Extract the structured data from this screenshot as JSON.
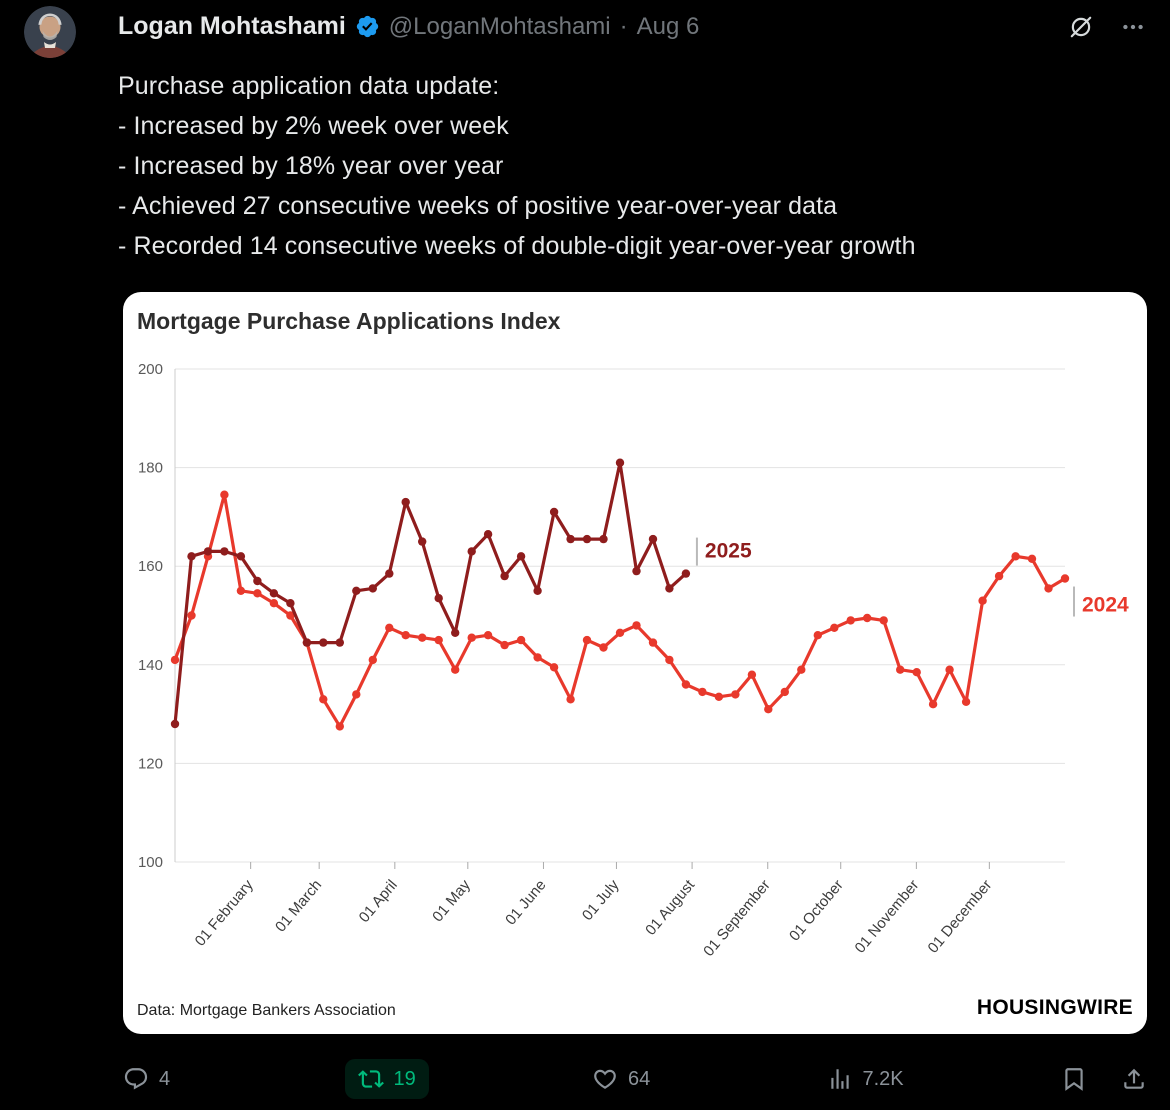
{
  "post": {
    "author": "Logan Mohtashami",
    "handle": "@LoganMohtashami",
    "separator": "·",
    "date": "Aug 6",
    "body_lines": [
      "Purchase application data update:",
      "- Increased by 2% week over week",
      "- Increased by 18% year over year",
      "- Achieved 27 consecutive weeks of positive year-over-year data",
      "- Recorded 14 consecutive weeks of double-digit year-over-year growth"
    ]
  },
  "actions": {
    "reply_count": "4",
    "repost_count": "19",
    "like_count": "64",
    "view_count": "7.2K"
  },
  "chart": {
    "title": "Mortgage Purchase Applications Index",
    "source": "Data: Mortgage Bankers Association",
    "brand": "HOUSINGWIRE"
  },
  "chart_data": {
    "type": "line",
    "title": "Mortgage Purchase Applications Index",
    "ylim": [
      100,
      200
    ],
    "yticks": [
      100,
      120,
      140,
      160,
      180,
      200
    ],
    "grid": "horizontal",
    "legend": "end-of-line-labels",
    "x_ticks": [
      {
        "label": "01 February",
        "f": 0.085
      },
      {
        "label": "01 March",
        "f": 0.162
      },
      {
        "label": "01 April",
        "f": 0.247
      },
      {
        "label": "01 May",
        "f": 0.329
      },
      {
        "label": "01 June",
        "f": 0.414
      },
      {
        "label": "01 July",
        "f": 0.496
      },
      {
        "label": "01 August",
        "f": 0.581
      },
      {
        "label": "01 September",
        "f": 0.666
      },
      {
        "label": "01 October",
        "f": 0.748
      },
      {
        "label": "01 November",
        "f": 0.833
      },
      {
        "label": "01 December",
        "f": 0.915
      }
    ],
    "series": [
      {
        "name": "2025",
        "color": "#8f1d1d",
        "label_side": "above",
        "values": [
          128,
          162,
          163,
          163,
          162,
          157,
          154.5,
          152.5,
          144.5,
          144.5,
          144.5,
          155,
          155.5,
          158.5,
          173,
          165,
          153.5,
          146.5,
          163,
          166.5,
          158,
          162,
          155,
          171,
          165.5,
          165.5,
          165.5,
          181,
          159,
          165.5,
          155.5,
          158.5
        ]
      },
      {
        "name": "2024",
        "color": "#e8392c",
        "label_side": "below",
        "values": [
          141,
          150,
          162,
          174.5,
          155,
          154.5,
          152.5,
          150,
          144.5,
          133,
          127.5,
          134,
          141,
          147.5,
          146,
          145.5,
          145,
          139,
          145.5,
          146,
          144,
          145,
          141.5,
          139.5,
          133,
          145,
          143.5,
          146.5,
          148,
          144.5,
          141,
          136,
          134.5,
          133.5,
          134,
          138,
          131,
          134.5,
          139,
          146,
          147.5,
          149,
          149.5,
          149,
          139,
          138.5,
          132,
          139,
          132.5,
          153,
          158,
          162,
          161.5,
          155.5,
          157.5
        ]
      }
    ],
    "source": "Data: Mortgage Bankers Association"
  }
}
